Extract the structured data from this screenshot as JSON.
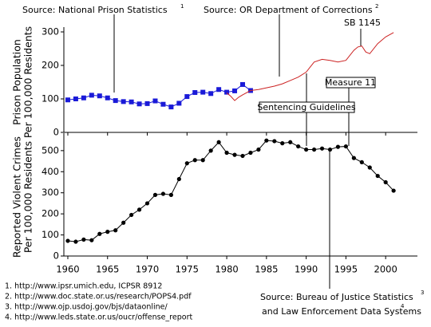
{
  "chart_data": [
    {
      "type": "line",
      "ylabel": [
        "Prison Population",
        "Per 100,000 Residents"
      ],
      "xlim": [
        1959.5,
        2004
      ],
      "ylim": [
        0,
        300
      ],
      "yticks": [
        0,
        100,
        200,
        300
      ],
      "series": [
        {
          "color": "#1a1ad8",
          "marker": "square",
          "x": [
            1960,
            1961,
            1962,
            1963,
            1964,
            1965,
            1966,
            1967,
            1968,
            1969,
            1970,
            1971,
            1972,
            1973,
            1974,
            1975,
            1976,
            1977,
            1978,
            1979,
            1980,
            1981,
            1982,
            1983
          ],
          "values": [
            97,
            100,
            103,
            111,
            109,
            103,
            95,
            92,
            91,
            85,
            86,
            94,
            84,
            76,
            87,
            107,
            119,
            120,
            116,
            128,
            120,
            124,
            143,
            125
          ]
        },
        {
          "color": "#cc2222",
          "marker": "none",
          "x": [
            1980,
            1980.5,
            1981,
            1981.5,
            1982,
            1983,
            1984,
            1985,
            1986,
            1987,
            1988,
            1989,
            1990,
            1990.5,
            1991,
            1992,
            1993,
            1994,
            1995,
            1996,
            1996.5,
            1997,
            1997.5,
            1998,
            1999,
            2000,
            2001
          ],
          "values": [
            118,
            108,
            95,
            105,
            112,
            125,
            128,
            133,
            138,
            145,
            155,
            165,
            180,
            195,
            210,
            218,
            215,
            210,
            215,
            245,
            255,
            258,
            240,
            235,
            265,
            285,
            298
          ]
        }
      ]
    },
    {
      "type": "line",
      "ylabel": [
        "Reported Violent Crimes",
        "Per 100,000 Residents"
      ],
      "xlim": [
        1959.5,
        2004
      ],
      "ylim": [
        0,
        560
      ],
      "xticks": [
        1960,
        1965,
        1970,
        1975,
        1980,
        1985,
        1990,
        1995,
        2000
      ],
      "yticks": [
        0,
        100,
        200,
        300,
        400,
        500
      ],
      "series": [
        {
          "color": "#000000",
          "marker": "circle",
          "x": [
            1960,
            1961,
            1962,
            1963,
            1964,
            1965,
            1966,
            1967,
            1968,
            1969,
            1970,
            1971,
            1972,
            1973,
            1974,
            1975,
            1976,
            1977,
            1978,
            1979,
            1980,
            1981,
            1982,
            1983,
            1984,
            1985,
            1986,
            1987,
            1988,
            1989,
            1990,
            1991,
            1992,
            1993,
            1994,
            1995,
            1996,
            1997,
            1998,
            1999,
            2000,
            2001
          ],
          "values": [
            72,
            68,
            78,
            75,
            105,
            115,
            122,
            158,
            195,
            220,
            250,
            290,
            295,
            290,
            365,
            440,
            455,
            455,
            500,
            540,
            490,
            480,
            475,
            490,
            505,
            548,
            545,
            535,
            540,
            520,
            505,
            505,
            510,
            505,
            518,
            520,
            465,
            445,
            420,
            380,
            350,
            310
          ]
        }
      ]
    }
  ],
  "annotations": [
    {
      "text": "Source: National Prison Statistics",
      "sup": "1"
    },
    {
      "text": "Source: OR Department of Corrections",
      "sup": "2"
    },
    {
      "text": "SB 1145"
    },
    {
      "text": "Measure 11"
    },
    {
      "text": "Sentencing Guidelines"
    },
    {
      "text": "Source: Bureau of Justice Statistics",
      "sup": "3"
    },
    {
      "text": "and Law Enforcement Data Systems",
      "sup": "4"
    }
  ],
  "footnotes": [
    "1. http://www.ipsr.umich.edu, ICPSR 8912",
    "2. http://www.doc.state.or.us/research/POPS4.pdf",
    "3. http://www.ojp.usdoj.gov/bjs/dataonline/",
    "4. http://www.leds.state.or.us/oucr/offense_report"
  ]
}
